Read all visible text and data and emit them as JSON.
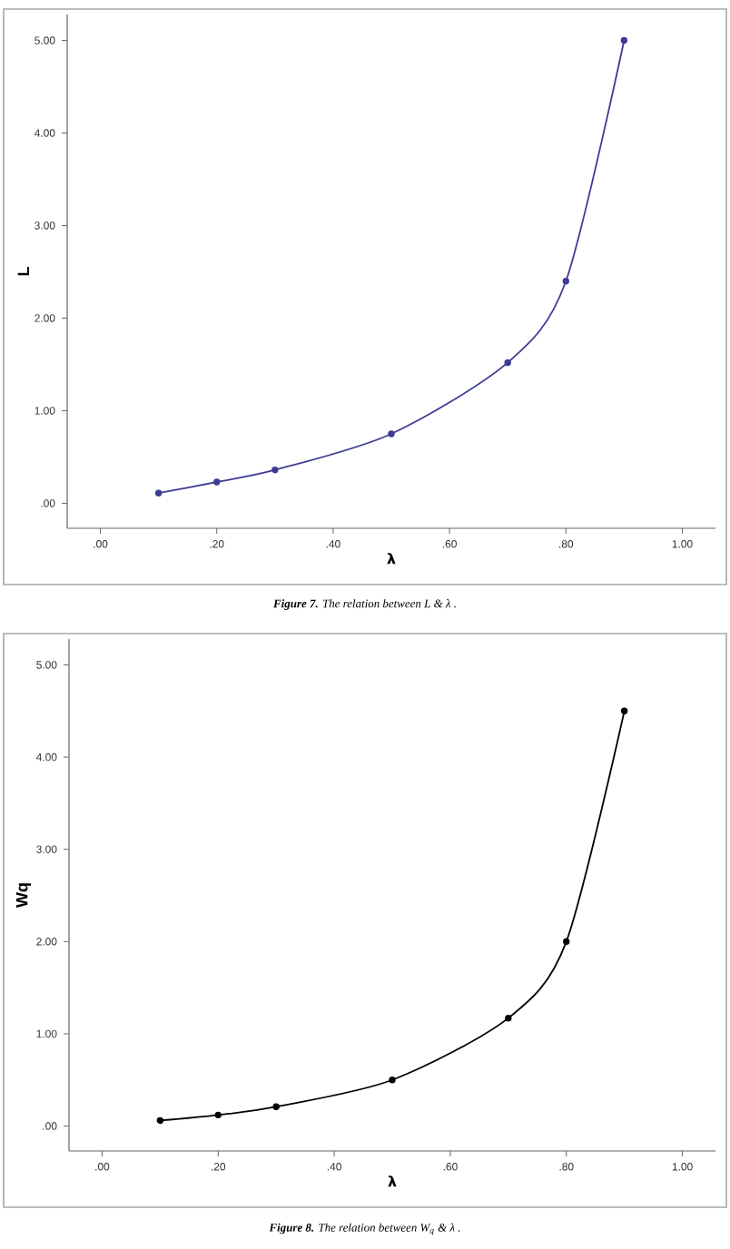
{
  "chart_data": [
    {
      "type": "line",
      "xlabel": "λ",
      "ylabel": "L",
      "x": [
        0.1,
        0.2,
        0.3,
        0.5,
        0.7,
        0.8,
        0.9
      ],
      "series": [
        {
          "color": "#3c3c96",
          "values": [
            0.11,
            0.23,
            0.36,
            0.75,
            1.52,
            2.4,
            5.0
          ]
        }
      ],
      "marker": "circle",
      "xlim": [
        -0.057,
        1.057
      ],
      "ylim": [
        -0.27,
        5.28
      ],
      "xticks": [
        {
          "value": 0,
          "label": ".00"
        },
        {
          "value": 0.2,
          "label": ".20"
        },
        {
          "value": 0.4,
          "label": ".40"
        },
        {
          "value": 0.6,
          "label": ".60"
        },
        {
          "value": 0.8,
          "label": ".80"
        },
        {
          "value": 1,
          "label": "1.00"
        }
      ],
      "yticks": [
        {
          "value": 0,
          "label": ".00"
        },
        {
          "value": 1,
          "label": "1.00"
        },
        {
          "value": 2,
          "label": "2.00"
        },
        {
          "value": 3,
          "label": "3.00"
        },
        {
          "value": 4,
          "label": "4.00"
        },
        {
          "value": 5,
          "label": "5.00"
        }
      ],
      "annotations": [
        "**Figure 7.** The relation between L & λ ."
      ]
    },
    {
      "type": "line",
      "xlabel": "λ",
      "ylabel": "Wq",
      "x": [
        0.1,
        0.2,
        0.3,
        0.5,
        0.7,
        0.8,
        0.9
      ],
      "series": [
        {
          "color": "#000000",
          "values": [
            0.06,
            0.12,
            0.21,
            0.5,
            1.17,
            2.0,
            4.5
          ]
        }
      ],
      "marker": "circle",
      "xlim": [
        -0.057,
        1.057
      ],
      "ylim": [
        -0.27,
        5.28
      ],
      "xticks": [
        {
          "value": 0,
          "label": ".00"
        },
        {
          "value": 0.2,
          "label": ".20"
        },
        {
          "value": 0.4,
          "label": ".40"
        },
        {
          "value": 0.6,
          "label": ".60"
        },
        {
          "value": 0.8,
          "label": ".80"
        },
        {
          "value": 1,
          "label": "1.00"
        }
      ],
      "yticks": [
        {
          "value": 0,
          "label": ".00"
        },
        {
          "value": 1,
          "label": "1.00"
        },
        {
          "value": 2,
          "label": "2.00"
        },
        {
          "value": 3,
          "label": "3.00"
        },
        {
          "value": 4,
          "label": "4.00"
        },
        {
          "value": 5,
          "label": "5.00"
        }
      ],
      "annotations": [
        "**Figure 8.** The relation between W$_{q}$ & λ ."
      ]
    }
  ]
}
